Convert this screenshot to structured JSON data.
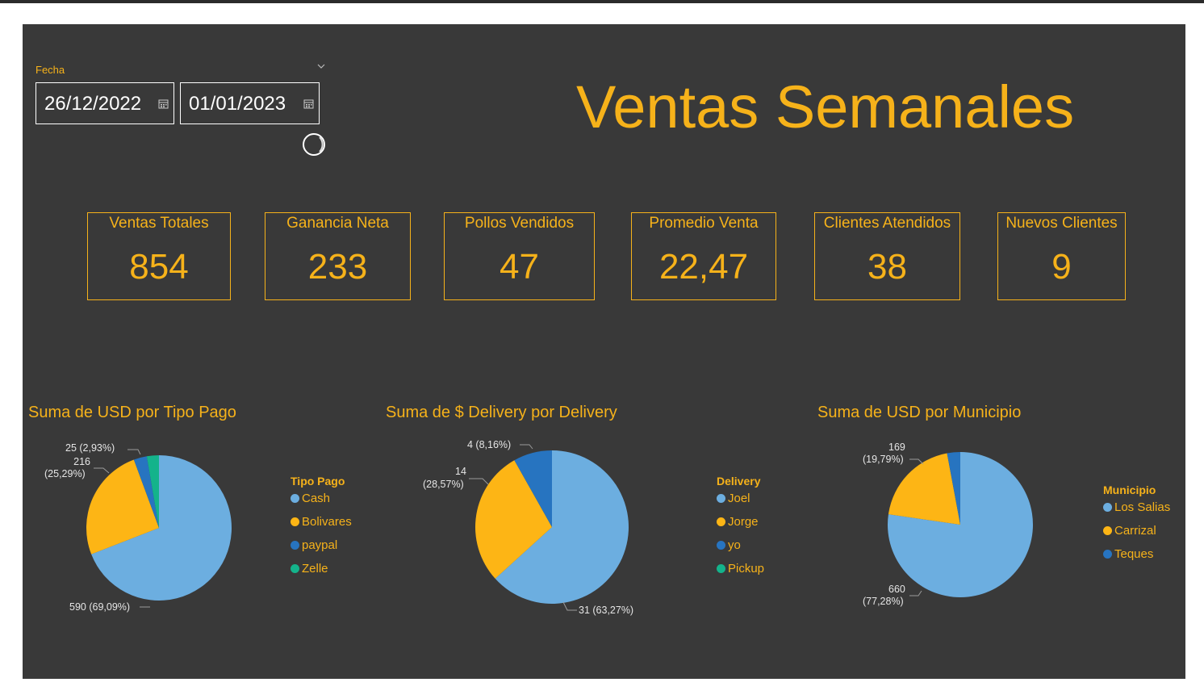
{
  "colors": {
    "accent": "#f6b21a",
    "background": "#393939",
    "series": [
      "#6caee0",
      "#fdb515",
      "#2774c0",
      "#14b38b"
    ]
  },
  "title": "Ventas Semanales",
  "date_filter": {
    "label": "Fecha",
    "start": "26/12/2022",
    "end": "01/01/2023",
    "icons": {
      "dropdown": "chevron-down-icon",
      "calendar": "calendar-icon",
      "loading": "spinner-icon"
    }
  },
  "kpis": [
    {
      "label": "Ventas Totales",
      "value": "854"
    },
    {
      "label": "Ganancia Neta",
      "value": "233"
    },
    {
      "label": "Pollos Vendidos",
      "value": "47"
    },
    {
      "label": "Promedio Venta",
      "value": "22,47"
    },
    {
      "label": "Clientes Atendidos",
      "value": "38"
    },
    {
      "label": "Nuevos Clientes",
      "value": "9"
    }
  ],
  "chart_data": [
    {
      "type": "pie",
      "title": "Suma de USD por Tipo Pago",
      "legend_title": "Tipo Pago",
      "legend_placement": "right",
      "categories": [
        "Cash",
        "Bolivares",
        "paypal",
        "Zelle"
      ],
      "values": [
        590,
        216,
        25,
        23
      ],
      "data_labels": [
        "590 (69,09%)",
        "216 (25,29%)",
        "25 (2,93%)",
        ""
      ]
    },
    {
      "type": "pie",
      "title": "Suma de $ Delivery por Delivery",
      "legend_title": "Delivery",
      "legend_placement": "right",
      "categories": [
        "Joel",
        "Jorge",
        "yo",
        "Pickup"
      ],
      "values": [
        31,
        14,
        4,
        0
      ],
      "data_labels": [
        "31 (63,27%)",
        "14 (28,57%)",
        "4 (8,16%)",
        ""
      ]
    },
    {
      "type": "pie",
      "title": "Suma de USD por Municipio",
      "legend_title": "Municipio",
      "legend_placement": "right",
      "categories": [
        "Los Salias",
        "Carrizal",
        "Teques"
      ],
      "values": [
        660,
        169,
        25
      ],
      "data_labels": [
        "660 (77,28%)",
        "169 (19,79%)",
        ""
      ]
    }
  ]
}
